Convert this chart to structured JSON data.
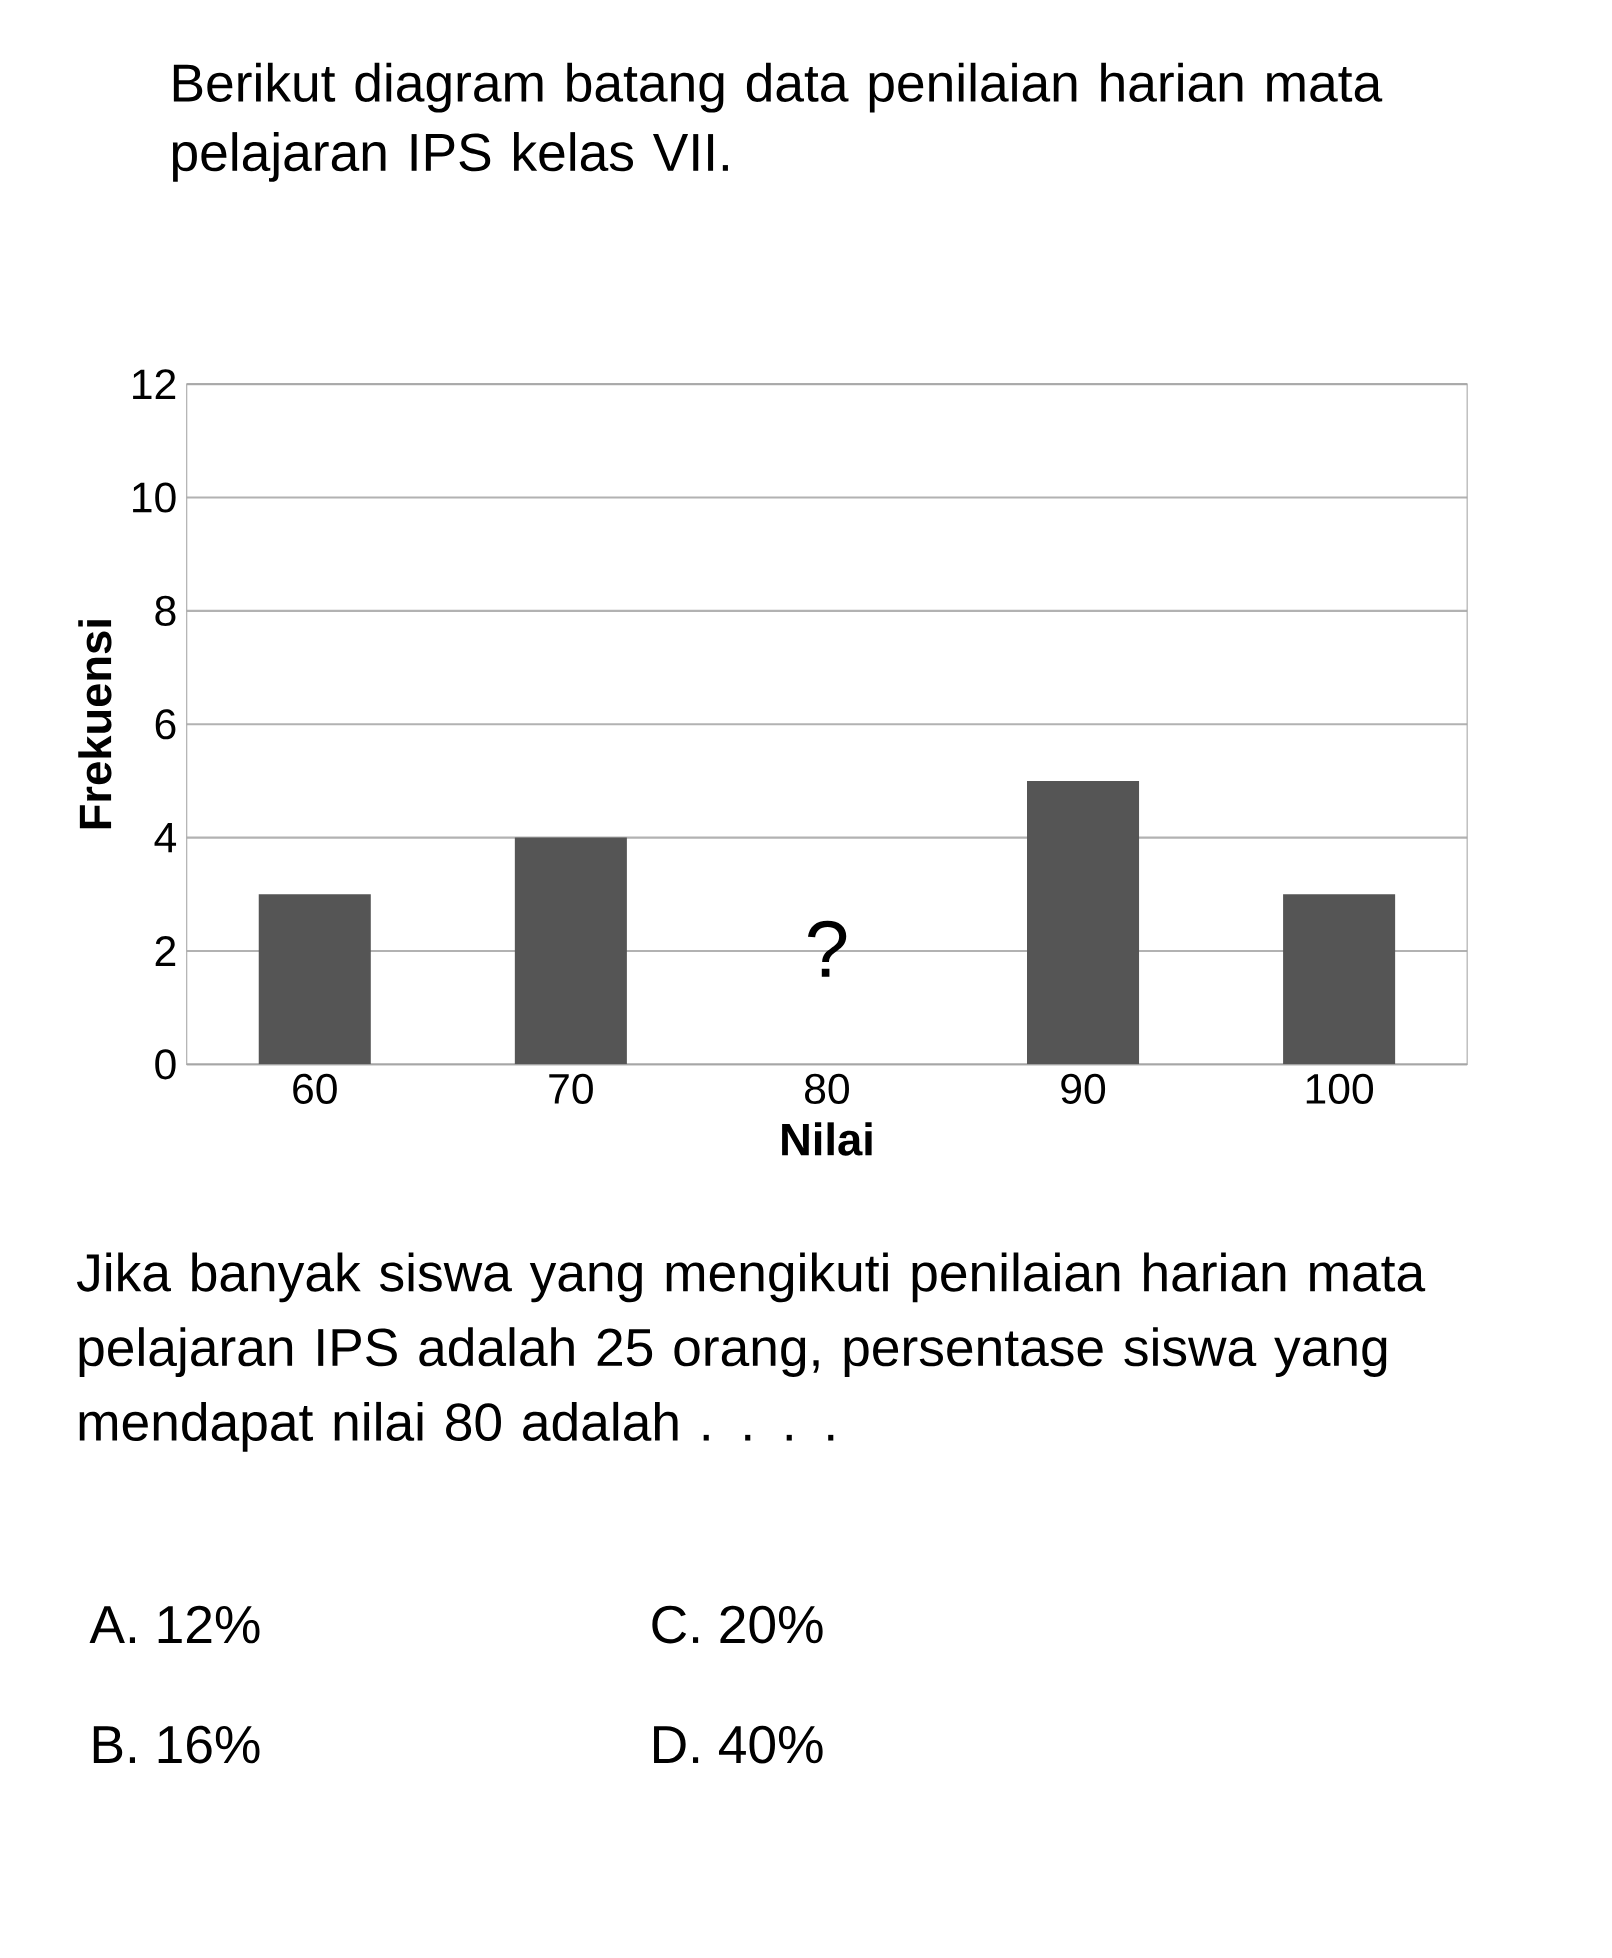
{
  "chart_data": {
    "type": "bar",
    "title": "Berikut diagram batang data penilaian harian mata pelajaran IPS kelas VII.",
    "xlabel": "Nilai",
    "ylabel": "Frekuensi",
    "categories": [
      "60",
      "70",
      "80",
      "90",
      "100"
    ],
    "values": [
      3,
      4,
      null,
      5,
      3
    ],
    "color": "#555555",
    "ylim": [
      0,
      12
    ],
    "yticks": [
      0,
      2,
      4,
      6,
      8,
      10,
      12
    ],
    "grid": "y",
    "annotations": [
      "Jika banyak siswa yang mengikuti penilaian harian mata pelajaran IPS adalah 25 orang, persentase siswa yang mendapat nilai 80 adalah . . . .",
      "A. 12%",
      "B. 16%",
      "C. 20%",
      "D. 40%",
      "?"
    ]
  }
}
